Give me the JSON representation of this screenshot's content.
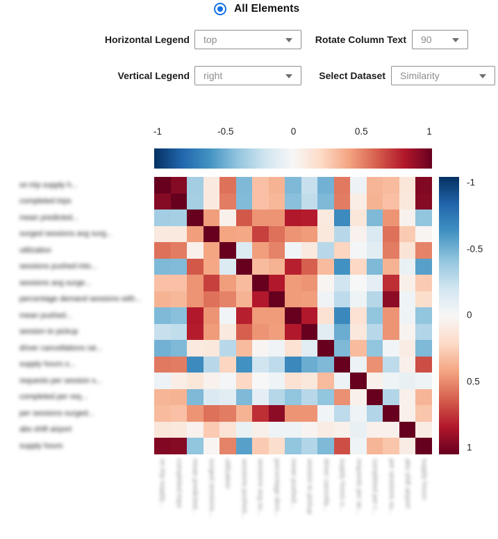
{
  "radio": {
    "label": "All Elements",
    "selected": true,
    "accent_color": "#1372e8"
  },
  "controls": {
    "horizontal_legend": {
      "label": "Horizontal Legend",
      "value": "top"
    },
    "rotate_column_text": {
      "label": "Rotate Column Text",
      "value": "90"
    },
    "vertical_legend": {
      "label": "Vertical Legend",
      "value": "right"
    },
    "select_dataset": {
      "label": "Select Dataset",
      "value": "Similarity"
    }
  },
  "chart_data": {
    "type": "heatmap",
    "title": "",
    "colormap": "RdBu reversed: -1 dark blue, 0 white, +1 dark red",
    "colormap_stops": [
      "#053061",
      "#2166ac",
      "#4393c3",
      "#92c5de",
      "#d1e5f0",
      "#f7f7f7",
      "#fddbc7",
      "#f4a582",
      "#d6604d",
      "#b2182b",
      "#67001f"
    ],
    "vmin": -1,
    "vmax": 1,
    "legend_ticks": [
      "-1",
      "-0.5",
      "0",
      "0.5",
      "1"
    ],
    "horizontal_legend_position": "top",
    "vertical_legend_position": "right",
    "row_labels_blurred": true,
    "row_labels": [
      "on trip supply h...",
      "completed trips",
      "mean predicted...",
      "surged sessions avg surg...",
      "utilization",
      "sessions pushed into...",
      "sessions avg surge...",
      "percentage demand sessions with...",
      "mean pushed...",
      "session to pickup",
      "driver cancellations rat...",
      "supply hours o...",
      "requests per session s...",
      "completed per req...",
      "per sessions surged...",
      "abs shift airport",
      "supply hours"
    ],
    "col_labels": [
      "on trip supply...",
      "completed trips",
      "mean predicted...",
      "surged sessions...",
      "utilization",
      "sessions pushed...",
      "sessions avg su...",
      "percentage dem...",
      "mean pushed...",
      "session to pickup",
      "driver cancella...",
      "supply hours o...",
      "requests per se...",
      "completed per r...",
      "per sessions su...",
      "abs shift airport",
      "supply hours"
    ],
    "values": [
      [
        1.0,
        0.92,
        -0.35,
        0.1,
        0.55,
        -0.45,
        0.3,
        0.35,
        -0.45,
        -0.23,
        -0.48,
        0.53,
        -0.06,
        0.34,
        0.32,
        0.12,
        0.93
      ],
      [
        0.92,
        1.0,
        -0.34,
        0.1,
        0.52,
        -0.44,
        0.3,
        0.33,
        -0.42,
        -0.25,
        -0.45,
        0.52,
        0.07,
        0.35,
        0.3,
        0.11,
        0.92
      ],
      [
        -0.35,
        -0.34,
        1.0,
        0.42,
        0.05,
        0.62,
        0.45,
        0.45,
        0.8,
        0.79,
        0.1,
        -0.64,
        0.12,
        -0.45,
        0.45,
        0.04,
        -0.4
      ],
      [
        0.1,
        0.1,
        0.42,
        1.0,
        0.4,
        0.39,
        0.69,
        0.55,
        0.45,
        0.43,
        0.11,
        -0.28,
        0.04,
        -0.15,
        0.55,
        0.26,
        0.02
      ],
      [
        0.55,
        0.52,
        0.05,
        0.4,
        1.0,
        -0.14,
        0.42,
        0.5,
        -0.03,
        0.1,
        -0.28,
        0.22,
        -0.02,
        -0.11,
        0.52,
        0.14,
        0.5
      ],
      [
        -0.45,
        -0.44,
        0.62,
        0.39,
        -0.14,
        1.0,
        0.32,
        0.35,
        0.78,
        0.6,
        0.32,
        -0.61,
        0.21,
        -0.45,
        0.35,
        -0.07,
        -0.55
      ],
      [
        0.3,
        0.3,
        0.45,
        0.69,
        0.42,
        0.32,
        1.0,
        0.8,
        0.43,
        0.45,
        0.02,
        -0.2,
        0.0,
        -0.1,
        0.74,
        0.06,
        0.26
      ],
      [
        0.35,
        0.33,
        0.45,
        0.55,
        0.5,
        0.35,
        0.8,
        1.0,
        0.43,
        0.42,
        -0.04,
        -0.26,
        -0.05,
        -0.29,
        0.9,
        -0.05,
        0.18
      ],
      [
        -0.45,
        -0.42,
        0.8,
        0.45,
        -0.03,
        0.78,
        0.43,
        0.43,
        1.0,
        0.8,
        0.15,
        -0.65,
        0.15,
        -0.4,
        0.45,
        -0.05,
        -0.4
      ],
      [
        -0.23,
        -0.25,
        0.79,
        0.43,
        0.1,
        0.6,
        0.45,
        0.42,
        0.8,
        1.0,
        -0.11,
        -0.5,
        0.11,
        -0.28,
        0.45,
        0.03,
        -0.3
      ],
      [
        -0.48,
        -0.45,
        0.1,
        0.11,
        -0.28,
        0.32,
        0.02,
        -0.04,
        0.15,
        -0.11,
        1.0,
        -0.45,
        0.32,
        -0.4,
        -0.03,
        0.08,
        -0.45
      ],
      [
        0.53,
        0.52,
        -0.64,
        -0.28,
        0.22,
        -0.61,
        -0.2,
        -0.26,
        -0.65,
        -0.5,
        -0.45,
        1.0,
        -0.06,
        0.46,
        -0.26,
        0.05,
        0.65
      ],
      [
        -0.06,
        0.07,
        0.12,
        0.04,
        -0.02,
        0.21,
        0.0,
        -0.05,
        0.15,
        0.11,
        0.32,
        -0.06,
        1.0,
        0.05,
        -0.05,
        -0.08,
        -0.05
      ],
      [
        0.34,
        0.35,
        -0.45,
        -0.15,
        -0.11,
        -0.45,
        -0.1,
        -0.29,
        -0.4,
        -0.28,
        -0.4,
        0.46,
        0.05,
        1.0,
        -0.3,
        0.05,
        0.34
      ],
      [
        0.32,
        0.3,
        0.45,
        0.55,
        0.52,
        0.35,
        0.74,
        0.9,
        0.45,
        0.45,
        -0.03,
        -0.26,
        -0.05,
        -0.3,
        1.0,
        0.05,
        0.28
      ],
      [
        0.12,
        0.11,
        0.04,
        0.26,
        0.14,
        -0.07,
        0.06,
        -0.05,
        -0.05,
        0.03,
        0.08,
        0.05,
        -0.08,
        0.05,
        0.05,
        1.0,
        0.08
      ],
      [
        0.93,
        0.92,
        -0.4,
        0.02,
        0.5,
        -0.55,
        0.26,
        0.18,
        -0.4,
        -0.3,
        -0.45,
        0.65,
        -0.05,
        0.34,
        0.28,
        0.08,
        1.0
      ]
    ]
  }
}
